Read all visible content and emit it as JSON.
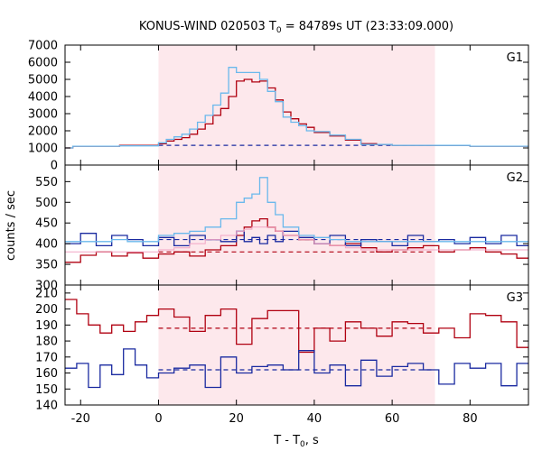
{
  "chart_data": {
    "type": "line",
    "title_main": "KONUS-WIND 020503 T",
    "title_sub": "0",
    "title_rest": " = 84789s UT (23:33:09.000)",
    "xlabel_main": "T - T",
    "xlabel_sub": "0",
    "xlabel_rest": ", s",
    "ylabel": "counts / sec",
    "xlim": [
      -24,
      95
    ],
    "x_ticks": [
      -20,
      0,
      20,
      40,
      60,
      80
    ],
    "shaded_interval": [
      0,
      71
    ],
    "colors": {
      "red": "#b00010",
      "blue": "#1a2aa0",
      "cyan": "#6ab8ec",
      "pink": "#f2a4c4",
      "shade": "#fde8ec"
    },
    "panels": [
      {
        "name": "G1",
        "ylim": [
          0,
          7000
        ],
        "y_ticks": [
          0,
          1000,
          2000,
          3000,
          4000,
          5000,
          6000,
          7000
        ],
        "background_level": 1150,
        "bin_edges": [
          -24,
          -22,
          -10,
          0,
          2,
          4,
          6,
          8,
          10,
          12,
          14,
          16,
          18,
          20,
          22,
          24,
          26,
          28,
          30,
          32,
          34,
          36,
          38,
          40,
          44,
          48,
          52,
          56,
          60,
          70,
          80,
          95
        ],
        "series": [
          {
            "color": "red",
            "values": [
              1000,
              1100,
              1150,
              1250,
              1400,
              1500,
              1600,
              1800,
              2100,
              2400,
              2900,
              3300,
              4000,
              4900,
              5000,
              4850,
              4900,
              4500,
              3800,
              3100,
              2700,
              2400,
              2200,
              1900,
              1700,
              1450,
              1250,
              1200,
              1150,
              1150,
              1100
            ]
          },
          {
            "color": "cyan",
            "values": [
              1000,
              1100,
              1120,
              1300,
              1500,
              1650,
              1800,
              2100,
              2500,
              2900,
              3500,
              4200,
              5700,
              5400,
              5400,
              5400,
              5000,
              4300,
              3700,
              2800,
              2500,
              2300,
              2000,
              1950,
              1750,
              1500,
              1200,
              1200,
              1150,
              1150,
              1100
            ]
          }
        ]
      },
      {
        "name": "G2",
        "ylim": [
          300,
          590
        ],
        "y_ticks": [
          300,
          350,
          400,
          450,
          500,
          550
        ],
        "background_red": 380,
        "background_blue": 410,
        "bin_edges": [
          -24,
          -20,
          -16,
          -12,
          -8,
          -4,
          0,
          4,
          8,
          12,
          16,
          20,
          22,
          24,
          26,
          28,
          30,
          32,
          36,
          40,
          44,
          48,
          52,
          56,
          60,
          64,
          68,
          72,
          76,
          80,
          84,
          88,
          92,
          95
        ],
        "series": [
          {
            "color": "red",
            "values": [
              355,
              372,
              380,
              370,
              378,
              365,
              375,
              380,
              370,
              385,
              395,
              420,
              440,
              455,
              460,
              440,
              430,
              420,
              410,
              400,
              395,
              400,
              390,
              380,
              385,
              390,
              395,
              380,
              385,
              390,
              380,
              375,
              365
            ]
          },
          {
            "color": "blue",
            "values": [
              400,
              425,
              395,
              420,
              410,
              395,
              415,
              395,
              420,
              410,
              405,
              430,
              405,
              415,
              400,
              420,
              405,
              430,
              415,
              400,
              420,
              395,
              410,
              405,
              395,
              420,
              405,
              410,
              400,
              415,
              400,
              420,
              395
            ]
          },
          {
            "color": "cyan",
            "values": [
              405,
              405,
              405,
              410,
              405,
              405,
              420,
              425,
              430,
              440,
              460,
              500,
              510,
              520,
              560,
              500,
              470,
              440,
              420,
              415,
              410,
              405,
              405,
              405,
              405,
              405,
              405,
              405,
              405,
              405,
              405,
              405,
              405
            ]
          },
          {
            "color": "pink",
            "values": [
              380,
              380,
              380,
              380,
              380,
              380,
              385,
              390,
              400,
              410,
              420,
              430,
              435,
              440,
              440,
              440,
              430,
              420,
              410,
              400,
              395,
              390,
              385,
              385,
              385,
              385,
              385,
              385,
              385,
              385,
              385,
              385,
              385
            ]
          }
        ]
      },
      {
        "name": "G3",
        "ylim": [
          140,
          215
        ],
        "y_ticks": [
          140,
          150,
          160,
          170,
          180,
          190,
          200,
          210
        ],
        "background_red": 188,
        "background_blue": 162,
        "bin_edges": [
          -24,
          -21,
          -18,
          -15,
          -12,
          -9,
          -6,
          -3,
          0,
          4,
          8,
          12,
          16,
          20,
          24,
          28,
          32,
          36,
          40,
          44,
          48,
          52,
          56,
          60,
          64,
          68,
          72,
          76,
          80,
          84,
          88,
          92,
          95
        ],
        "series": [
          {
            "color": "red",
            "values": [
              206,
              197,
              190,
              185,
              190,
              186,
              192,
              196,
              200,
              195,
              186,
              196,
              200,
              178,
              194,
              199,
              199,
              173,
              188,
              180,
              192,
              188,
              183,
              192,
              191,
              185,
              188,
              182,
              197,
              196,
              192,
              176
            ]
          },
          {
            "color": "blue",
            "values": [
              163,
              166,
              151,
              165,
              159,
              175,
              165,
              157,
              160,
              163,
              165,
              151,
              170,
              160,
              164,
              165,
              162,
              174,
              160,
              165,
              152,
              168,
              158,
              164,
              166,
              162,
              153,
              166,
              163,
              166,
              152,
              166
            ]
          }
        ]
      }
    ]
  }
}
